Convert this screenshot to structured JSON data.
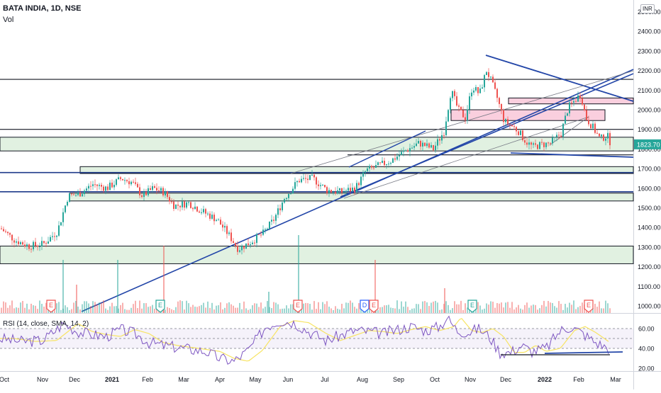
{
  "chart_data": {
    "type": "candlestick",
    "title": "BATA INDIA, 1D, NSE",
    "volume_label": "Vol",
    "currency": "INR",
    "price_axis": {
      "min": 950,
      "max": 2500,
      "ticks": [
        "1000.00",
        "1100.00",
        "1200.00",
        "1300.00",
        "1400.00",
        "1500.00",
        "1600.00",
        "1700.00",
        "1800.00",
        "1900.00",
        "2000.00",
        "2100.00",
        "2200.00",
        "2300.00",
        "2400.00",
        "2500.00"
      ],
      "last_price": "1823.70"
    },
    "rsi_axis": {
      "min": 15,
      "max": 75,
      "ticks": [
        "20.00",
        "40.00",
        "60.00"
      ],
      "band_upper": 60,
      "band_lower": 40
    },
    "rsi_legend": "RSI (14, close, SMA, 14, 2)",
    "x_axis": {
      "labels": [
        "Oct",
        "Nov",
        "Dec",
        "2021",
        "Feb",
        "Mar",
        "Apr",
        "May",
        "Jun",
        "Jul",
        "Aug",
        "Sep",
        "Oct",
        "Nov",
        "Dec",
        "2022",
        "Feb",
        "Mar"
      ],
      "bold": [
        "2021",
        "2022"
      ]
    },
    "price_keypoints": [
      [
        0,
        1395
      ],
      [
        20,
        1335
      ],
      [
        40,
        1305
      ],
      [
        60,
        1315
      ],
      [
        80,
        1380
      ],
      [
        95,
        1560
      ],
      [
        110,
        1570
      ],
      [
        130,
        1620
      ],
      [
        150,
        1600
      ],
      [
        170,
        1650
      ],
      [
        185,
        1630
      ],
      [
        200,
        1560
      ],
      [
        215,
        1600
      ],
      [
        230,
        1580
      ],
      [
        245,
        1510
      ],
      [
        265,
        1525
      ],
      [
        285,
        1480
      ],
      [
        305,
        1440
      ],
      [
        320,
        1370
      ],
      [
        335,
        1290
      ],
      [
        350,
        1320
      ],
      [
        370,
        1370
      ],
      [
        385,
        1440
      ],
      [
        400,
        1550
      ],
      [
        420,
        1640
      ],
      [
        440,
        1650
      ],
      [
        460,
        1590
      ],
      [
        480,
        1580
      ],
      [
        500,
        1600
      ],
      [
        515,
        1690
      ],
      [
        530,
        1710
      ],
      [
        550,
        1740
      ],
      [
        570,
        1790
      ],
      [
        590,
        1830
      ],
      [
        610,
        1800
      ],
      [
        625,
        1890
      ],
      [
        635,
        2100
      ],
      [
        645,
        2000
      ],
      [
        655,
        1960
      ],
      [
        665,
        2120
      ],
      [
        675,
        2080
      ],
      [
        685,
        2200
      ],
      [
        690,
        2160
      ],
      [
        700,
        2060
      ],
      [
        710,
        1940
      ],
      [
        720,
        1920
      ],
      [
        730,
        1890
      ],
      [
        740,
        1840
      ],
      [
        750,
        1810
      ],
      [
        760,
        1820
      ],
      [
        775,
        1830
      ],
      [
        790,
        1880
      ],
      [
        800,
        2010
      ],
      [
        810,
        2050
      ],
      [
        818,
        2080
      ],
      [
        825,
        1960
      ],
      [
        835,
        1910
      ],
      [
        845,
        1850
      ],
      [
        855,
        1870
      ],
      [
        860,
        1830
      ]
    ],
    "rsi_keypoints": [
      [
        0,
        50
      ],
      [
        30,
        47
      ],
      [
        60,
        48
      ],
      [
        90,
        65
      ],
      [
        110,
        57
      ],
      [
        130,
        54
      ],
      [
        150,
        52
      ],
      [
        170,
        59
      ],
      [
        190,
        55
      ],
      [
        210,
        46
      ],
      [
        230,
        43
      ],
      [
        260,
        40
      ],
      [
        290,
        37
      ],
      [
        310,
        30
      ],
      [
        330,
        27
      ],
      [
        350,
        38
      ],
      [
        375,
        62
      ],
      [
        395,
        68
      ],
      [
        415,
        66
      ],
      [
        440,
        55
      ],
      [
        460,
        48
      ],
      [
        480,
        53
      ],
      [
        500,
        58
      ],
      [
        520,
        57
      ],
      [
        540,
        55
      ],
      [
        560,
        59
      ],
      [
        580,
        62
      ],
      [
        600,
        58
      ],
      [
        620,
        62
      ],
      [
        630,
        71
      ],
      [
        645,
        58
      ],
      [
        660,
        56
      ],
      [
        675,
        60
      ],
      [
        690,
        52
      ],
      [
        705,
        36
      ],
      [
        720,
        36
      ],
      [
        735,
        43
      ],
      [
        750,
        37
      ],
      [
        770,
        40
      ],
      [
        790,
        58
      ],
      [
        805,
        62
      ],
      [
        820,
        56
      ],
      [
        840,
        46
      ],
      [
        858,
        40
      ]
    ]
  }
}
